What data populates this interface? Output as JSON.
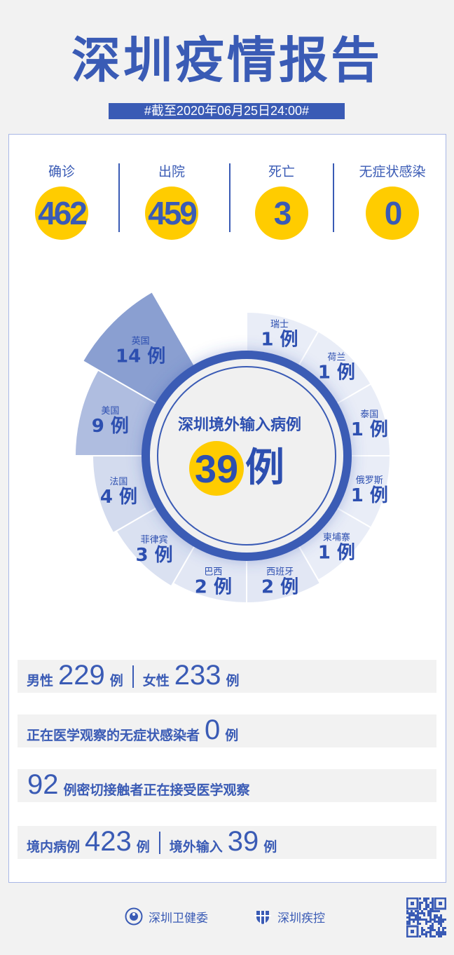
{
  "header": {
    "title": "深圳疫情报告",
    "date": "#截至2020年06月25日24:00#"
  },
  "stats": [
    {
      "label": "确诊",
      "value": "462"
    },
    {
      "label": "出院",
      "value": "459"
    },
    {
      "label": "死亡",
      "value": "3"
    },
    {
      "label": "无症状感染",
      "value": "0"
    }
  ],
  "chart_data": {
    "type": "rose",
    "title": "深圳境外输入病例",
    "total": "39",
    "unit": "例",
    "categories": [
      "瑞士",
      "荷兰",
      "泰国",
      "俄罗斯",
      "柬埔寨",
      "西班牙",
      "巴西",
      "菲律宾",
      "法国",
      "美国",
      "英国"
    ],
    "values": [
      1,
      1,
      1,
      1,
      1,
      2,
      2,
      3,
      4,
      9,
      14
    ],
    "colors": {
      "accent": "#3a5bb5",
      "highlight": "#ffcc00",
      "light": "#e9edf7",
      "dark": "#8a9fd1"
    }
  },
  "rows": {
    "gender": {
      "male_label": "男性",
      "male": "229",
      "female_label": "女性",
      "female": "233",
      "unit": "例"
    },
    "asymptomatic": {
      "label": "正在医学观察的无症状感染者",
      "value": "0",
      "unit": "例"
    },
    "contacts": {
      "value": "92",
      "label": "例密切接触者正在接受医学观察"
    },
    "origin": {
      "local_label": "境内病例",
      "local": "423",
      "imported_label": "境外输入",
      "imported": "39",
      "unit": "例"
    }
  },
  "footer": {
    "org1": "深圳卫健委",
    "org2": "深圳疾控"
  }
}
